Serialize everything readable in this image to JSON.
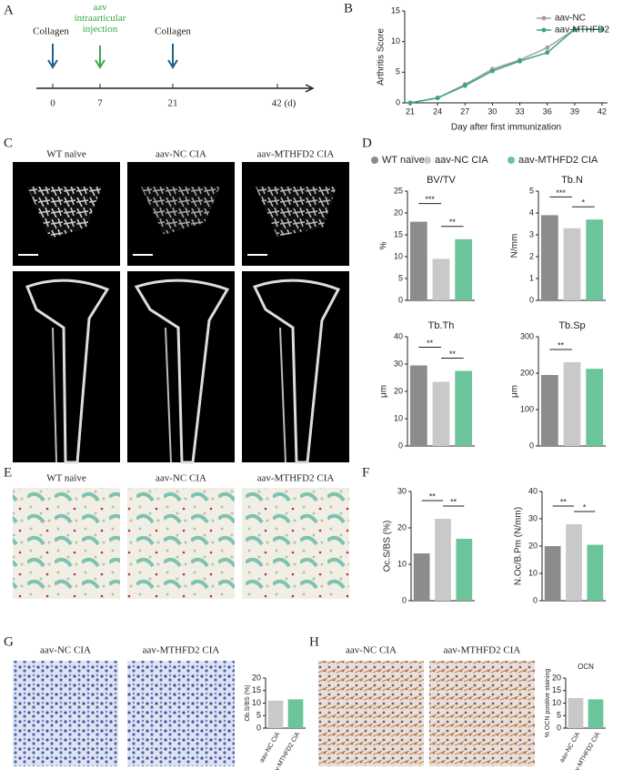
{
  "panel_labels": [
    "A",
    "B",
    "C",
    "D",
    "E",
    "F",
    "G",
    "H"
  ],
  "timeline": {
    "events": [
      "Collagen",
      "aav intraarticular injection",
      "Collagen"
    ],
    "ticks": [
      "0",
      "7",
      "21",
      "42 (d)"
    ]
  },
  "image_captions": {
    "C": [
      "WT naïve",
      "aav-NC CIA",
      "aav-MTHFD2 CIA"
    ],
    "E": [
      "WT naïve",
      "aav-NC CIA",
      "aav-MTHFD2 CIA"
    ],
    "G": [
      "aav-NC CIA",
      "aav-MTHFD2 CIA"
    ],
    "H": [
      "aav-NC CIA",
      "aav-MTHFD2 CIA"
    ]
  },
  "legend": [
    {
      "name": "WT naïve",
      "color": "#8c8c8c"
    },
    {
      "name": "aav-NC CIA",
      "color": "#c9c9c9"
    },
    {
      "name": "aav-MTHFD2 CIA",
      "color": "#6cc49a"
    }
  ],
  "chart_data": [
    {
      "type": "line",
      "y_label": "Arthritis Score",
      "x_label": "Day after first immunization",
      "categories": [
        21,
        24,
        27,
        30,
        33,
        36,
        39,
        42
      ],
      "series": [
        {
          "name": "aav-NC",
          "color": "#a0a0a0",
          "values": [
            0,
            0.8,
            3,
            5.5,
            7,
            9,
            12,
            12
          ]
        },
        {
          "name": "aav-MTHFD2",
          "color": "#3aa874",
          "values": [
            0,
            0.8,
            2.8,
            5.2,
            6.8,
            8.2,
            12,
            12
          ]
        }
      ],
      "ylim": [
        0,
        15
      ],
      "yticks": [
        0,
        5,
        10,
        15
      ]
    },
    {
      "type": "bar",
      "title": "BV/TV",
      "y_label": "%",
      "values": [
        18,
        9.5,
        14
      ],
      "colors": [
        "#8c8c8c",
        "#c9c9c9",
        "#6cc49a"
      ],
      "ylim": [
        0,
        25
      ],
      "yticks": [
        0,
        5,
        10,
        15,
        20,
        25
      ],
      "annotations": [
        "***",
        "**"
      ]
    },
    {
      "type": "bar",
      "title": "Tb.N",
      "y_label": "N/mm",
      "values": [
        3.9,
        3.3,
        3.7
      ],
      "colors": [
        "#8c8c8c",
        "#c9c9c9",
        "#6cc49a"
      ],
      "ylim": [
        0,
        5
      ],
      "yticks": [
        0,
        1,
        2,
        3,
        4,
        5
      ],
      "annotations": [
        "***",
        "*"
      ]
    },
    {
      "type": "bar",
      "title": "Tb.Th",
      "y_label": "μm",
      "values": [
        29.5,
        23.5,
        27.5
      ],
      "colors": [
        "#8c8c8c",
        "#c9c9c9",
        "#6cc49a"
      ],
      "ylim": [
        0,
        40
      ],
      "yticks": [
        0,
        10,
        20,
        30,
        40
      ],
      "annotations": [
        "**",
        "**"
      ]
    },
    {
      "type": "bar",
      "title": "Tb.Sp",
      "y_label": "μm",
      "values": [
        195,
        230,
        212
      ],
      "colors": [
        "#8c8c8c",
        "#c9c9c9",
        "#6cc49a"
      ],
      "ylim": [
        0,
        300
      ],
      "yticks": [
        0,
        100,
        200,
        300
      ],
      "annotations": [
        "**"
      ]
    },
    {
      "type": "bar",
      "y_label": "Oc.S/BS (%)",
      "values": [
        13,
        22.5,
        17
      ],
      "colors": [
        "#8c8c8c",
        "#c9c9c9",
        "#6cc49a"
      ],
      "ylim": [
        0,
        30
      ],
      "yticks": [
        0,
        10,
        20,
        30
      ],
      "annotations": [
        "**",
        "**"
      ]
    },
    {
      "type": "bar",
      "y_label": "N.Oc/B.Pm (N/mm)",
      "values": [
        20,
        28,
        20.5
      ],
      "colors": [
        "#8c8c8c",
        "#c9c9c9",
        "#6cc49a"
      ],
      "ylim": [
        0,
        40
      ],
      "yticks": [
        0,
        10,
        20,
        30,
        40
      ],
      "annotations": [
        "**",
        "*"
      ]
    },
    {
      "type": "bar",
      "y_label": "Ob.S/BS (%)",
      "categories": [
        "aav-NC CIA",
        "aav-MTHFD2 CIA"
      ],
      "values": [
        11,
        11.5
      ],
      "colors": [
        "#c9c9c9",
        "#6cc49a"
      ],
      "ylim": [
        0,
        20
      ],
      "yticks": [
        0,
        5,
        10,
        15,
        20
      ]
    },
    {
      "type": "bar",
      "title": "OCN",
      "y_label": "% OCN positive staining",
      "categories": [
        "aav-NC CIA",
        "aav-MTHFD2 CIA"
      ],
      "values": [
        12,
        11.5
      ],
      "colors": [
        "#c9c9c9",
        "#6cc49a"
      ],
      "ylim": [
        0,
        20
      ],
      "yticks": [
        0,
        5,
        10,
        15,
        20
      ]
    }
  ]
}
